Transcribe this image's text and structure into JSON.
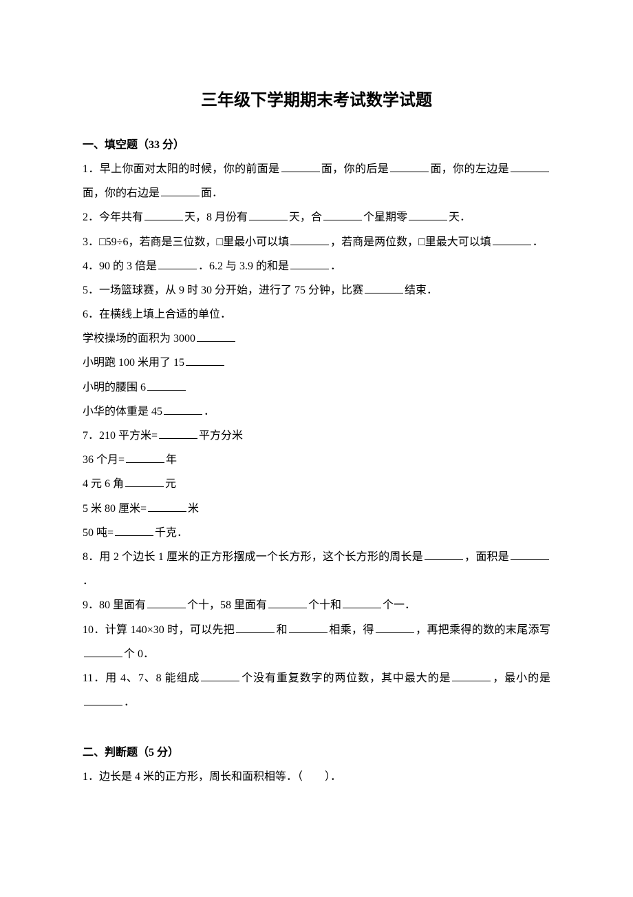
{
  "title": "三年级下学期期末考试数学试题",
  "section1": {
    "header": "一、填空题（33 分）",
    "q1_a": "1．早上你面对太阳的时候，你的前面是",
    "q1_b": "面，你的后是",
    "q1_c": "面，你的左边是",
    "q1_d": "面，你的右边是",
    "q1_e": "面．",
    "q2_a": "2．今年共有",
    "q2_b": "天，8 月份有",
    "q2_c": "天，合",
    "q2_d": "个星期零",
    "q2_e": "天．",
    "q3_a": "3．□59÷6，若商是三位数，□里最小可以填",
    "q3_b": "，若商是两位数，□里最大可以填",
    "q3_c": "．",
    "q4_a": "4．90 的 3 倍是",
    "q4_b": "．6.2 与 3.9 的和是",
    "q4_c": "．",
    "q5_a": "5．一场篮球赛，从 9 时 30 分开始，进行了 75 分钟，比赛",
    "q5_b": "结束．",
    "q6_a": "6．在横线上填上合适的单位．",
    "q6_b": "学校操场的面积为 3000",
    "q6_c": "小明跑 100 米用了 15",
    "q6_d": "小明的腰围 6",
    "q6_e": "小华的体重是 45",
    "q6_f": "．",
    "q7_a": "7．210 平方米=",
    "q7_b": "平方分米",
    "q7_c": "36 个月=",
    "q7_d": "年",
    "q7_e": "4 元 6 角",
    "q7_f": "元",
    "q7_g": "5 米 80 厘米=",
    "q7_h": "米",
    "q7_i": "50 吨=",
    "q7_j": "千克．",
    "q8_a": "8．用 2 个边长 1 厘米的正方形摆成一个长方形，这个长方形的周长是",
    "q8_b": "，面积是",
    "q8_c": "．",
    "q9_a": "9．80 里面有",
    "q9_b": "个十，58 里面有",
    "q9_c": "个十和",
    "q9_d": "个一．",
    "q10_a": "10．计算 140×30 时，可以先把",
    "q10_b": "和",
    "q10_c": "相乘，得",
    "q10_d": "，再把乘得的数的末尾添写",
    "q10_e": "个 0．",
    "q11_a": "11．用 4、7、8 能组成",
    "q11_b": "个没有重复数字的两位数，其中最大的是",
    "q11_c": "，最小的是",
    "q11_d": "．"
  },
  "section2": {
    "header": "二、判断题（5 分）",
    "q1": "1．边长是 4 米的正方形，周长和面积相等．（　　）．"
  }
}
